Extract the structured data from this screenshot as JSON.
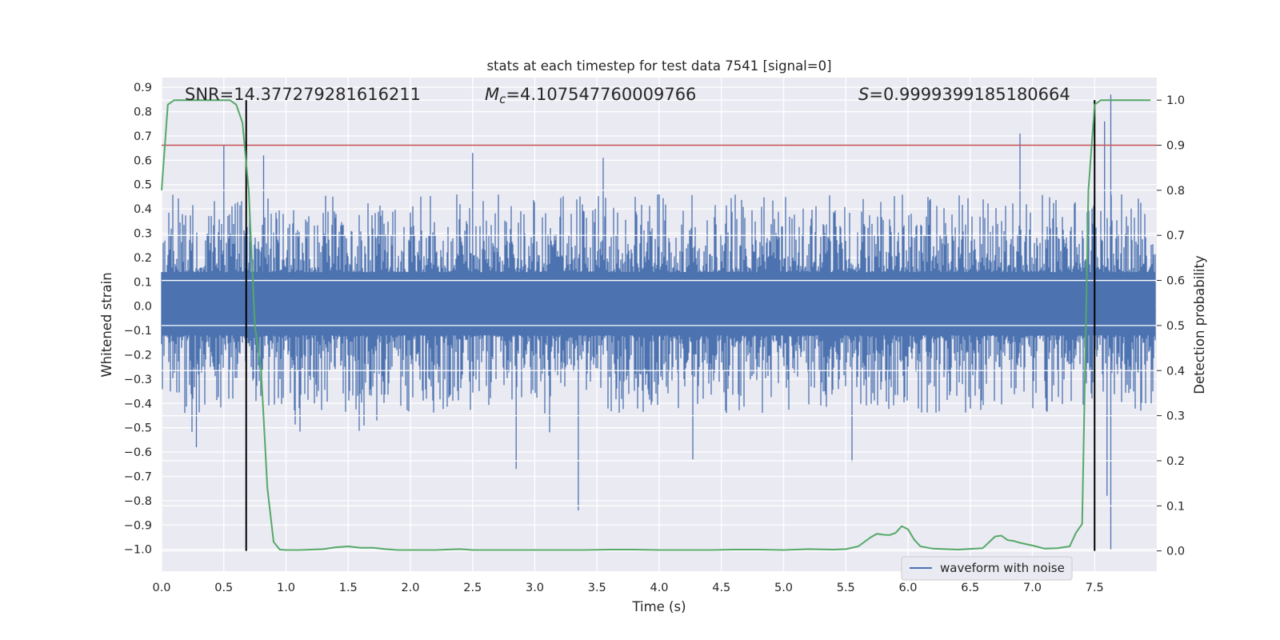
{
  "chart_data": {
    "type": "line",
    "title": "stats at each timestep for test data 7541 [signal=0]",
    "xlabel": "Time (s)",
    "ylabel": "Whitened strain",
    "ylabel_right": "Detection probability",
    "xlim": [
      0.0,
      8.0
    ],
    "ylim": [
      -1.09,
      0.94
    ],
    "ylim_right": [
      -0.045,
      1.05
    ],
    "grid": true,
    "x_ticks": [
      "0.0",
      "0.5",
      "1.0",
      "1.5",
      "2.0",
      "2.5",
      "3.0",
      "3.5",
      "4.0",
      "4.5",
      "5.0",
      "5.5",
      "6.0",
      "6.5",
      "7.0",
      "7.5"
    ],
    "y_ticks": [
      "0.9",
      "0.8",
      "0.7",
      "0.6",
      "0.5",
      "0.4",
      "0.3",
      "0.2",
      "0.1",
      "0.0",
      "−0.1",
      "−0.2",
      "−0.3",
      "−0.4",
      "−0.5",
      "−0.6",
      "−0.7",
      "−0.8",
      "−0.9",
      "−1.0"
    ],
    "y_ticks_right": [
      "1.0",
      "0.9",
      "0.8",
      "0.7",
      "0.6",
      "0.5",
      "0.4",
      "0.3",
      "0.2",
      "0.1",
      "0.0"
    ],
    "annotations": {
      "snr": "SNR=14.377279281616211",
      "mc_symbol": "M",
      "mc_sub": "c",
      "mc_value": "=4.107547760009766",
      "s_symbol": "S",
      "s_value": "=0.9999399185180664"
    },
    "threshold_line": {
      "y_right": 0.9,
      "color": "#c44e52"
    },
    "vertical_lines": [
      0.68,
      7.5
    ],
    "legend": {
      "label": "waveform with noise",
      "location": "lower-right"
    },
    "waveform": {
      "name": "waveform with noise",
      "color": "#4c72b0",
      "x_range": [
        0.0,
        7.99
      ],
      "spikes": [
        {
          "x": 0.5,
          "y": 0.66
        },
        {
          "x": 0.82,
          "y": 0.62
        },
        {
          "x": 2.5,
          "y": 0.63
        },
        {
          "x": 3.55,
          "y": 0.61
        },
        {
          "x": 6.9,
          "y": 0.71
        },
        {
          "x": 7.58,
          "y": 0.76
        },
        {
          "x": 7.63,
          "y": 0.87
        },
        {
          "x": 3.35,
          "y": -0.84
        },
        {
          "x": 2.85,
          "y": -0.67
        },
        {
          "x": 7.63,
          "y": -1.0
        },
        {
          "x": 7.6,
          "y": -0.78
        },
        {
          "x": 5.55,
          "y": -0.64
        },
        {
          "x": 4.27,
          "y": -0.63
        },
        {
          "x": 0.28,
          "y": -0.58
        }
      ]
    },
    "probability": {
      "name": "detection probability",
      "color": "#55a868",
      "x": [
        0.0,
        0.05,
        0.1,
        0.15,
        0.2,
        0.3,
        0.4,
        0.5,
        0.55,
        0.6,
        0.65,
        0.7,
        0.75,
        0.8,
        0.85,
        0.9,
        0.95,
        1.0,
        1.1,
        1.2,
        1.3,
        1.4,
        1.5,
        1.6,
        1.7,
        1.8,
        1.9,
        2.0,
        2.2,
        2.4,
        2.5,
        2.6,
        2.8,
        3.0,
        3.2,
        3.4,
        3.6,
        3.8,
        4.0,
        4.2,
        4.4,
        4.6,
        4.8,
        5.0,
        5.2,
        5.4,
        5.5,
        5.6,
        5.7,
        5.75,
        5.8,
        5.85,
        5.9,
        5.95,
        6.0,
        6.05,
        6.1,
        6.2,
        6.4,
        6.6,
        6.7,
        6.75,
        6.8,
        6.85,
        6.9,
        7.0,
        7.1,
        7.2,
        7.3,
        7.35,
        7.4,
        7.45,
        7.5,
        7.55,
        7.6,
        7.7,
        7.8,
        7.95
      ],
      "y": [
        0.8,
        0.99,
        1.0,
        1.0,
        1.0,
        1.0,
        1.0,
        1.0,
        1.0,
        0.99,
        0.95,
        0.8,
        0.5,
        0.4,
        0.14,
        0.02,
        0.003,
        0.002,
        0.002,
        0.003,
        0.004,
        0.008,
        0.01,
        0.007,
        0.007,
        0.004,
        0.002,
        0.002,
        0.002,
        0.004,
        0.002,
        0.002,
        0.002,
        0.002,
        0.002,
        0.002,
        0.003,
        0.003,
        0.002,
        0.002,
        0.002,
        0.003,
        0.003,
        0.002,
        0.004,
        0.003,
        0.004,
        0.01,
        0.03,
        0.038,
        0.036,
        0.035,
        0.04,
        0.055,
        0.048,
        0.025,
        0.01,
        0.005,
        0.003,
        0.006,
        0.032,
        0.034,
        0.024,
        0.022,
        0.018,
        0.012,
        0.005,
        0.006,
        0.01,
        0.04,
        0.06,
        0.8,
        0.99,
        1.0,
        1.0,
        1.0,
        1.0,
        1.0
      ]
    }
  }
}
